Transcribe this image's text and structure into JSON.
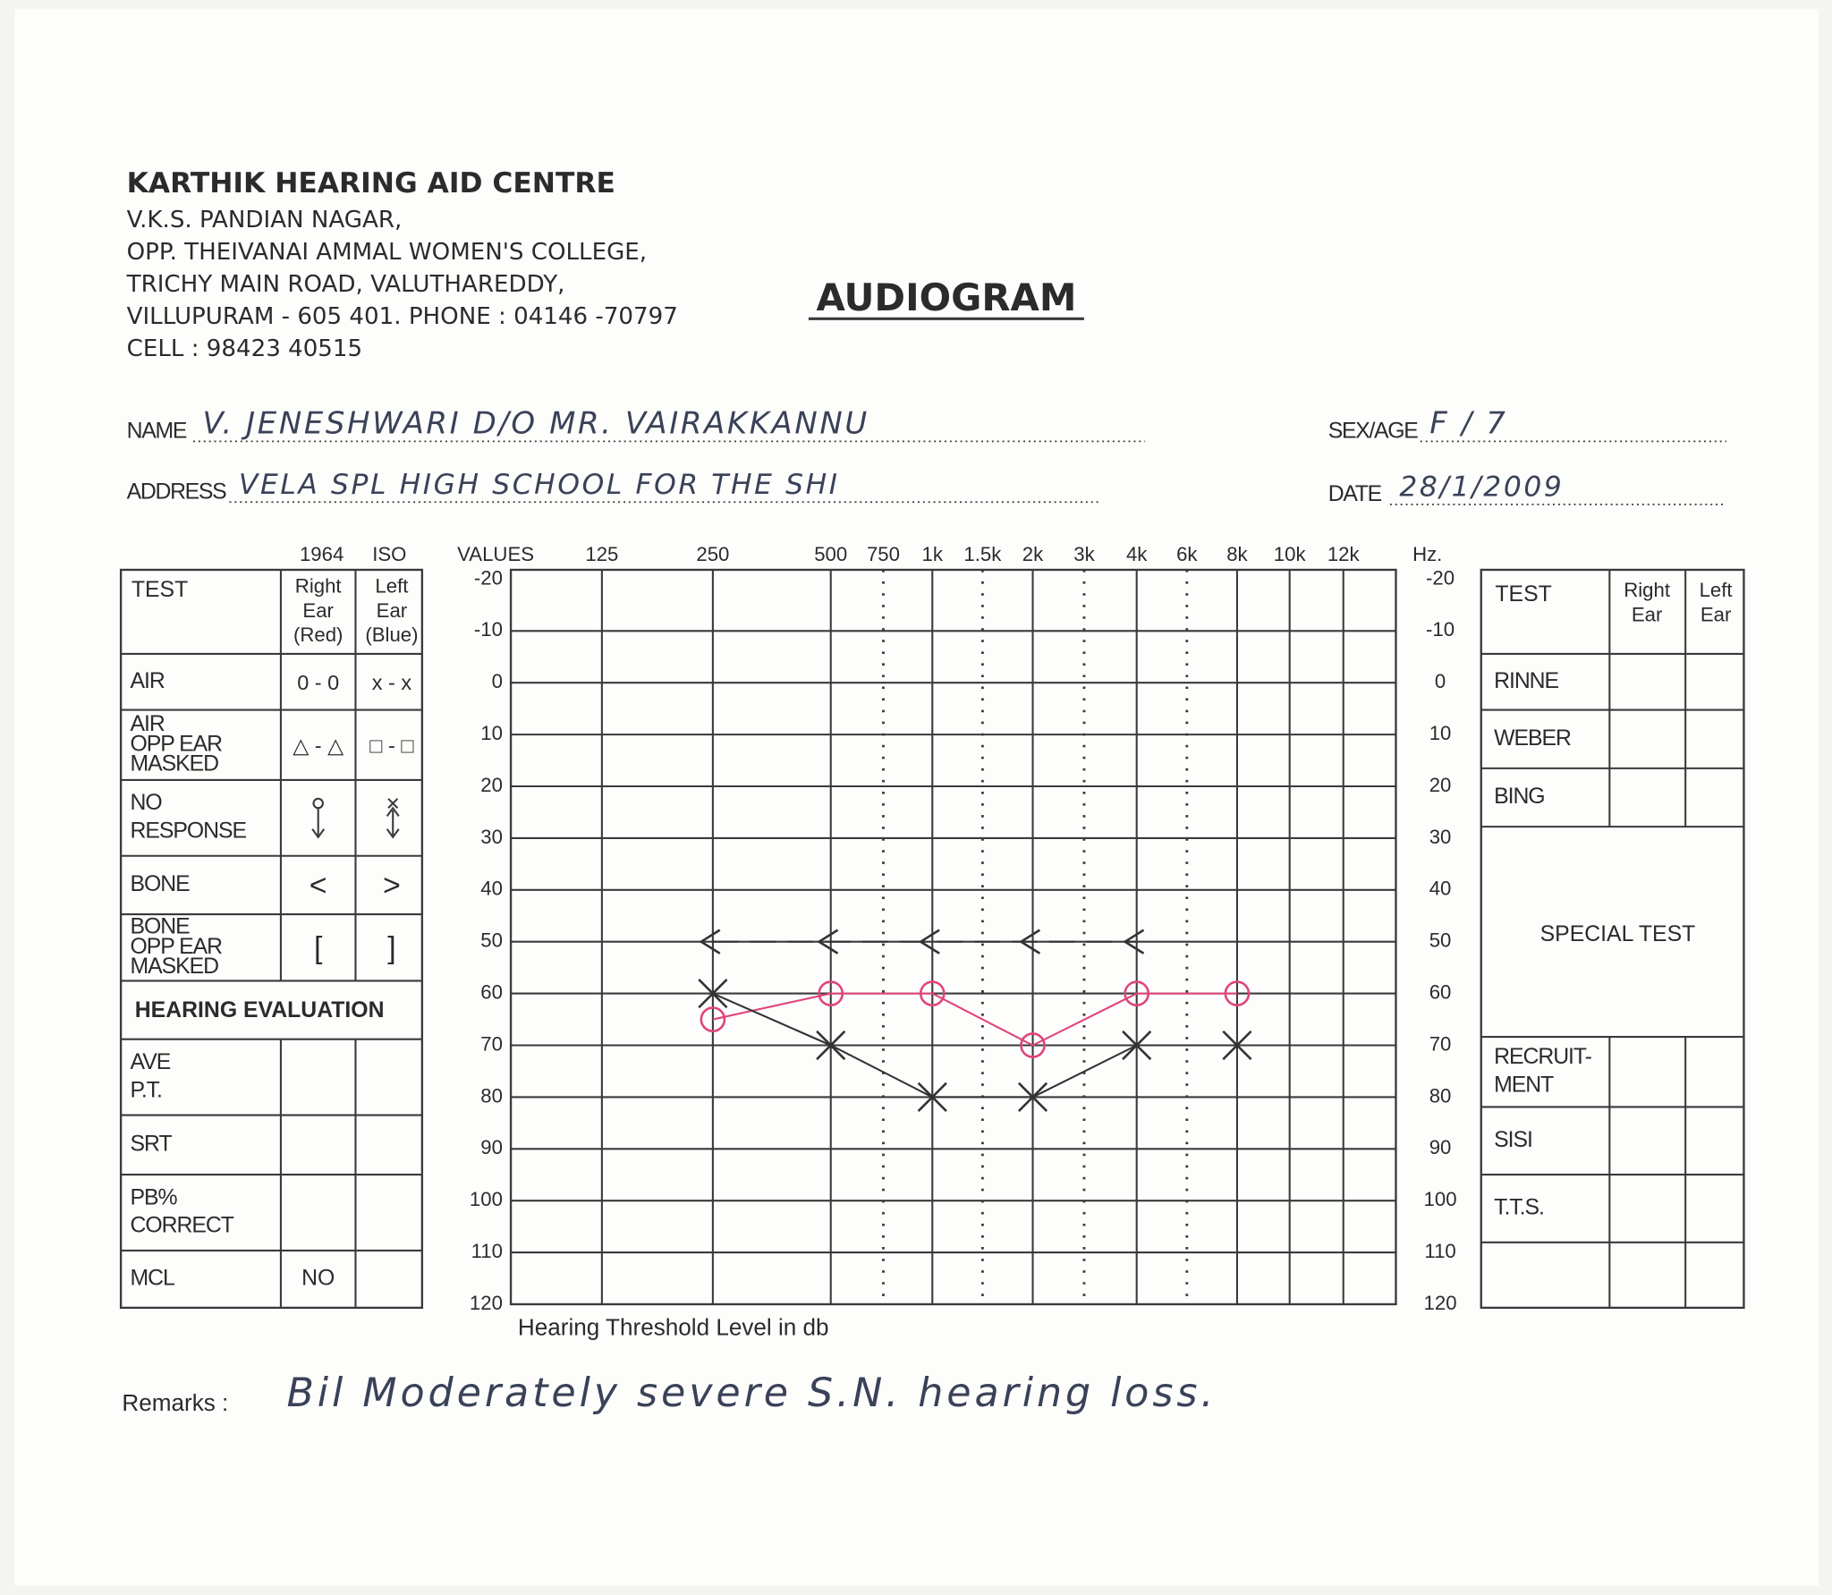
{
  "header": {
    "org": "KARTHIK HEARING AID CENTRE",
    "address_lines": [
      "V.K.S. PANDIAN NAGAR,",
      "OPP. THEIVANAI AMMAL WOMEN'S COLLEGE,",
      "TRICHY MAIN ROAD, VALUTHAREDDY,",
      "VILLUPURAM - 605 401. PHONE : 04146 -70797",
      "CELL : 98423 40515"
    ],
    "title": "AUDIOGRAM"
  },
  "patient": {
    "name_label": "NAME",
    "name": "V. JENESHWARI   D/O MR. VAIRAKKANNU",
    "sex_age_label": "SEX/AGE",
    "sex_age": "F / 7",
    "address_label": "ADDRESS",
    "address": "VELA   SPL   HIGH   SCHOOL   FOR  THE  SHI",
    "date_label": "DATE",
    "date": "28/1/2009"
  },
  "left_table": {
    "standard": [
      "1964",
      "ISO"
    ],
    "header": {
      "test": "TEST",
      "right": [
        "Right",
        "Ear",
        "(Red)"
      ],
      "left": [
        "Left",
        "Ear",
        "(Blue)"
      ]
    },
    "rows": [
      {
        "test": [
          "AIR"
        ],
        "right": "0 - 0",
        "left": "x - x"
      },
      {
        "test": [
          "AIR",
          "OPP EAR",
          "MASKED"
        ],
        "right": "△ - △",
        "left": "□ - □"
      },
      {
        "test": [
          "NO",
          "RESPONSE"
        ]
      },
      {
        "test": [
          "BONE"
        ],
        "right": "<",
        "left": ">"
      },
      {
        "test": [
          "BONE",
          "OPP EAR",
          "MASKED"
        ],
        "right": "[",
        "left": "]"
      }
    ],
    "evaluation_heading": "HEARING EVALUATION",
    "evaluation_rows": [
      {
        "test": [
          "AVE",
          "P.T."
        ]
      },
      {
        "test": [
          "SRT"
        ]
      },
      {
        "test": [
          "PB%",
          "CORRECT"
        ]
      },
      {
        "test": [
          "MCL"
        ],
        "right": "NO"
      }
    ]
  },
  "chart_data": {
    "type": "line",
    "values_label": "VALUES",
    "x_unit_label": "Hz.",
    "y_axis_label": "Hearing Threshold Level in db",
    "log_x": true,
    "y_inverted": true,
    "grid": true,
    "xticks": [
      125,
      250,
      500,
      750,
      {
        "value": 1000,
        "label": "1k"
      },
      {
        "value": 1500,
        "label": "1.5k"
      },
      {
        "value": 2000,
        "label": "2k"
      },
      {
        "value": 3000,
        "label": "3k"
      },
      {
        "value": 4000,
        "label": "4k"
      },
      {
        "value": 6000,
        "label": "6k"
      },
      {
        "value": 8000,
        "label": "8k"
      },
      {
        "value": 10000,
        "label": "10k"
      },
      {
        "value": 12000,
        "label": "12k"
      }
    ],
    "dotted_tick_indices": [
      3,
      5,
      7,
      9
    ],
    "ylim": [
      -20,
      120
    ],
    "yticks": [
      -20,
      -10,
      0,
      10,
      20,
      30,
      40,
      50,
      60,
      70,
      80,
      90,
      100,
      110,
      120
    ],
    "series": [
      {
        "color": "#e0457b",
        "marker": "o",
        "x": [
          250,
          500,
          1000,
          2000,
          4000,
          8000
        ],
        "values": [
          65,
          60,
          60,
          70,
          60,
          60
        ]
      },
      {
        "color": "#333333",
        "marker": "x",
        "x": [
          250,
          500,
          1000,
          2000,
          4000,
          8000
        ],
        "values": [
          60,
          70,
          80,
          80,
          70,
          70
        ]
      },
      {
        "color": "#333333",
        "marker": "<",
        "dashed": true,
        "x": [
          250,
          500,
          1000,
          2000,
          4000
        ],
        "values": [
          50,
          50,
          50,
          50,
          50
        ]
      }
    ]
  },
  "right_table": {
    "header": {
      "test": "TEST",
      "right": [
        "Right",
        "Ear"
      ],
      "left": [
        "Left",
        "Ear"
      ]
    },
    "rows": [
      [
        "RINNE"
      ],
      [
        "WEBER"
      ],
      [
        "BING"
      ]
    ],
    "special": "SPECIAL TEST",
    "rows_after": [
      [
        "RECRUIT-",
        "MENT"
      ],
      [
        "SISI"
      ],
      [
        "T.T.S."
      ]
    ]
  },
  "remarks": {
    "label": "Remarks :",
    "text": "Bil  Moderately  severe  S.N. hearing  loss."
  }
}
